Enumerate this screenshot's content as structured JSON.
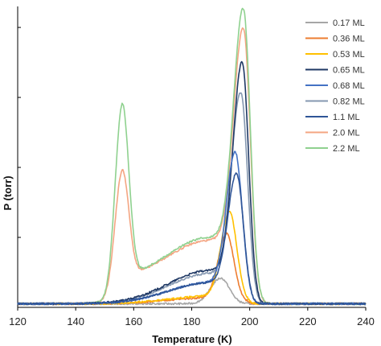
{
  "chart_data": {
    "type": "line",
    "xlabel": "Temperature (K)",
    "ylabel": "P (torr)",
    "xlim": [
      120,
      240
    ],
    "xticks": [
      "120",
      "140",
      "160",
      "180",
      "200",
      "220",
      "240"
    ],
    "ylim": [
      0,
      1.0
    ],
    "grid": false,
    "legend_position": "top-right",
    "series": [
      {
        "name": "0.17 ML",
        "color": "#a6a6a6",
        "peaks": [
          {
            "center": 190.0,
            "height": 0.085,
            "w_left": 3.5,
            "w_right": 3.0
          }
        ],
        "shoulder": 0.0,
        "base": 0.012
      },
      {
        "name": "0.36 ML",
        "color": "#ed7d31",
        "peaks": [
          {
            "center": 192.0,
            "height": 0.215,
            "w_left": 2.8,
            "w_right": 2.5
          }
        ],
        "shoulder": 0.02,
        "base": 0.012
      },
      {
        "name": "0.53 ML",
        "color": "#ffc000",
        "peaks": [
          {
            "center": 193.0,
            "height": 0.285,
            "w_left": 2.9,
            "w_right": 2.5
          }
        ],
        "shoulder": 0.025,
        "base": 0.012
      },
      {
        "name": "0.65 ML",
        "color": "#1f3864",
        "peaks": [
          {
            "center": 197.5,
            "height": 0.74,
            "w_left": 3.2,
            "w_right": 2.2
          }
        ],
        "shoulder": 0.11,
        "base": 0.012
      },
      {
        "name": "0.68 ML",
        "color": "#4472c4",
        "peaks": [
          {
            "center": 195.0,
            "height": 0.45,
            "w_left": 3.0,
            "w_right": 2.4
          }
        ],
        "shoulder": 0.07,
        "base": 0.012
      },
      {
        "name": "0.82 ML",
        "color": "#8497b0",
        "peaks": [
          {
            "center": 197.0,
            "height": 0.64,
            "w_left": 3.2,
            "w_right": 2.3
          }
        ],
        "shoulder": 0.1,
        "base": 0.012
      },
      {
        "name": "1.1 ML",
        "color": "#2f5597",
        "peaks": [
          {
            "center": 195.5,
            "height": 0.38,
            "w_left": 3.0,
            "w_right": 2.3
          }
        ],
        "shoulder": 0.07,
        "base": 0.012
      },
      {
        "name": "2.0 ML",
        "color": "#f4a582",
        "peaks": [
          {
            "center": 156.0,
            "height": 0.4,
            "w_left": 2.5,
            "w_right": 2.3
          },
          {
            "center": 198.0,
            "height": 0.78,
            "w_left": 3.4,
            "w_right": 2.3
          }
        ],
        "shoulder": 0.13,
        "base": 0.012
      },
      {
        "name": "2.2 ML",
        "color": "#8fd18f",
        "peaks": [
          {
            "center": 156.0,
            "height": 0.62,
            "w_left": 2.4,
            "w_right": 2.3
          },
          {
            "center": 198.0,
            "height": 0.84,
            "w_left": 3.4,
            "w_right": 2.3
          }
        ],
        "shoulder": 0.14,
        "base": 0.012
      }
    ]
  }
}
